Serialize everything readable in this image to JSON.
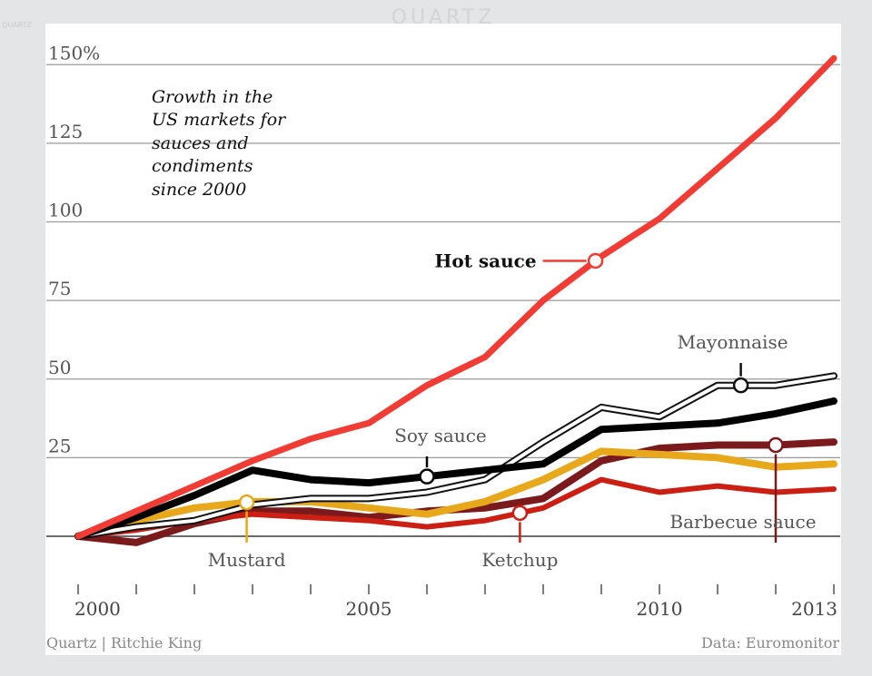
{
  "brand": "QUARTZ",
  "side_brand": "QUARTZ",
  "credits": {
    "left": "Quartz | Ritchie King",
    "right": "Data: Euromonitor"
  },
  "chart_data": {
    "type": "line",
    "title_lines": [
      "Growth in the",
      "US markets for",
      "sauces and",
      "condiments",
      "since 2000"
    ],
    "xlabel": "",
    "ylabel": "",
    "xlim": [
      2000,
      2013
    ],
    "ylim": [
      -20,
      155
    ],
    "y_ticks": [
      {
        "value": 150,
        "label": "150%"
      },
      {
        "value": 125,
        "label": "125"
      },
      {
        "value": 100,
        "label": "100"
      },
      {
        "value": 75,
        "label": "75"
      },
      {
        "value": 50,
        "label": "50"
      },
      {
        "value": 25,
        "label": "25"
      }
    ],
    "x_ticks": [
      2000,
      2001,
      2002,
      2003,
      2004,
      2005,
      2006,
      2007,
      2008,
      2009,
      2010,
      2011,
      2012,
      2013
    ],
    "x_tick_labels": [
      {
        "value": 2000,
        "label": "2000"
      },
      {
        "value": 2005,
        "label": "2005"
      },
      {
        "value": 2010,
        "label": "2010"
      },
      {
        "value": 2013,
        "label": "2013"
      }
    ],
    "x": [
      2000,
      2001,
      2002,
      2003,
      2004,
      2005,
      2006,
      2007,
      2008,
      2009,
      2010,
      2011,
      2012,
      2013
    ],
    "series": [
      {
        "name": "Barbecue sauce",
        "label": "Barbecue sauce",
        "color": "#7a1a1c",
        "style": "solid",
        "width": 8,
        "values": [
          0,
          -2,
          4,
          8,
          8,
          6,
          8,
          9,
          12,
          24,
          28,
          29,
          29,
          30
        ],
        "marker_year": 2012,
        "label_anchor": "below"
      },
      {
        "name": "Ketchup",
        "label": "Ketchup",
        "color": "#cc1f14",
        "style": "solid",
        "width": 6,
        "values": [
          0,
          2,
          5,
          7,
          6,
          5,
          3,
          5,
          9,
          18,
          14,
          16,
          14,
          15
        ],
        "marker_year": 2007.6,
        "label_anchor": "below"
      },
      {
        "name": "Mustard",
        "label": "Mustard",
        "color": "#e8a81c",
        "style": "solid",
        "width": 8,
        "values": [
          0,
          5,
          9,
          11,
          11,
          9,
          7,
          11,
          18,
          27,
          26,
          25,
          22,
          23
        ],
        "marker_year": 2002.9,
        "label_anchor": "below"
      },
      {
        "name": "Mayonnaise",
        "label": "Mayonnaise",
        "color": "#111111",
        "style": "double",
        "width": 8,
        "values": [
          0,
          3,
          5,
          10,
          12,
          12,
          14,
          18,
          30,
          41,
          38,
          48,
          48,
          51
        ],
        "marker_year": 2011.4,
        "label_anchor": "above"
      },
      {
        "name": "Soy sauce",
        "label": "Soy sauce",
        "color": "#000000",
        "style": "solid",
        "width": 8,
        "values": [
          0,
          6,
          13,
          21,
          18,
          17,
          19,
          21,
          23,
          34,
          35,
          36,
          39,
          43
        ],
        "marker_year": 2006,
        "label_anchor": "above"
      },
      {
        "name": "Hot sauce",
        "label": "Hot sauce",
        "color": "#f03c34",
        "style": "solid",
        "width": 7,
        "values": [
          0,
          8,
          16,
          24,
          31,
          36,
          48,
          57,
          75,
          89,
          101,
          117,
          133,
          152
        ],
        "marker_year": 2008.9,
        "label_anchor": "left"
      }
    ]
  }
}
